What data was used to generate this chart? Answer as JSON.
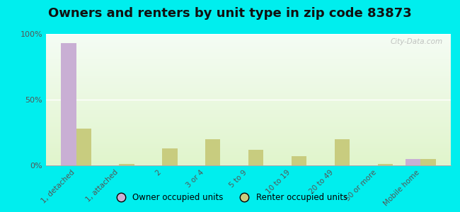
{
  "title": "Owners and renters by unit type in zip code 83873",
  "categories": [
    "1, detached",
    "1, attached",
    "2",
    "3 or 4",
    "5 to 9",
    "10 to 19",
    "20 to 49",
    "50 or more",
    "Mobile home"
  ],
  "owner_values": [
    93,
    0,
    0,
    0,
    0,
    0,
    0,
    0,
    5
  ],
  "renter_values": [
    28,
    1,
    13,
    20,
    12,
    7,
    20,
    1,
    5
  ],
  "owner_color": "#c9afd4",
  "renter_color": "#c8cc7f",
  "background_top": "#d8f0c8",
  "background_bottom": "#f0fae8",
  "outer_background": "#00eeee",
  "ylim": [
    0,
    100
  ],
  "yticks": [
    0,
    50,
    100
  ],
  "ytick_labels": [
    "0%",
    "50%",
    "100%"
  ],
  "bar_width": 0.35,
  "legend_owner": "Owner occupied units",
  "legend_renter": "Renter occupied units",
  "title_fontsize": 13,
  "watermark": "City-Data.com"
}
